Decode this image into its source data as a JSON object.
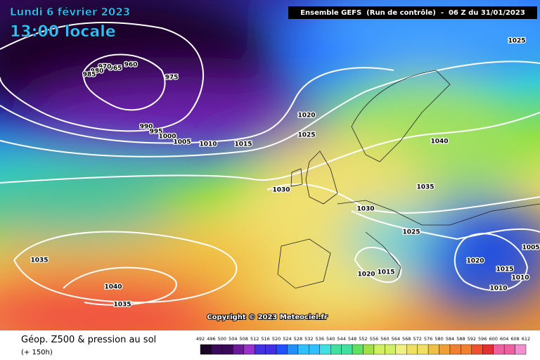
{
  "header": {
    "date": "Lundi 6 février 2023",
    "time": "13:00 locale",
    "model": "Ensemble GEFS  (Run de contrôle)  -  06 Z du 31/01/2023"
  },
  "isobar_labels": [
    1025,
    960,
    965,
    970,
    980,
    985,
    975,
    990,
    995,
    1000,
    1005,
    1010,
    1015,
    1020,
    1025,
    1040,
    1030,
    1035,
    1030,
    1025,
    1035,
    1040,
    1035,
    1020,
    1015,
    1020,
    1015,
    1005,
    1010,
    1010
  ],
  "copyright": "Copyright © 2023 Meteociel.fr",
  "footer": {
    "title": "Géop. Z500 & pression au sol",
    "lead_time": "(+ 150h)"
  },
  "scale_ticks": [
    492,
    496,
    500,
    504,
    508,
    512,
    516,
    520,
    524,
    528,
    532,
    536,
    540,
    544,
    548,
    552,
    556,
    560,
    564,
    568,
    572,
    576,
    580,
    584,
    588,
    592,
    596,
    600,
    604,
    608,
    612
  ]
}
